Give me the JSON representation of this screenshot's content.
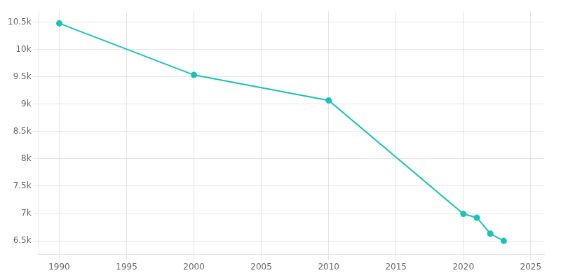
{
  "chart_data": {
    "type": "line",
    "x": [
      1990,
      2000,
      2010,
      2020,
      2021,
      2022,
      2023
    ],
    "values": [
      10478,
      9534,
      9069,
      6993,
      6924,
      6632,
      6500
    ],
    "color": "#17c3bb",
    "marker": "circle",
    "xlim": [
      1988.5,
      2026
    ],
    "xticks": [
      1990,
      1995,
      2000,
      2005,
      2010,
      2015,
      2020,
      2025
    ],
    "ylim": [
      6250,
      10700
    ],
    "yticks": [
      {
        "value": 6500,
        "label": "6.5k"
      },
      {
        "value": 7000,
        "label": "7k"
      },
      {
        "value": 7500,
        "label": "7.5k"
      },
      {
        "value": 8000,
        "label": "8k"
      },
      {
        "value": 8500,
        "label": "8.5k"
      },
      {
        "value": 9000,
        "label": "9k"
      },
      {
        "value": 9500,
        "label": "9.5k"
      },
      {
        "value": 10000,
        "label": "10k"
      },
      {
        "value": 10500,
        "label": "10.5k"
      }
    ],
    "grid": true
  }
}
